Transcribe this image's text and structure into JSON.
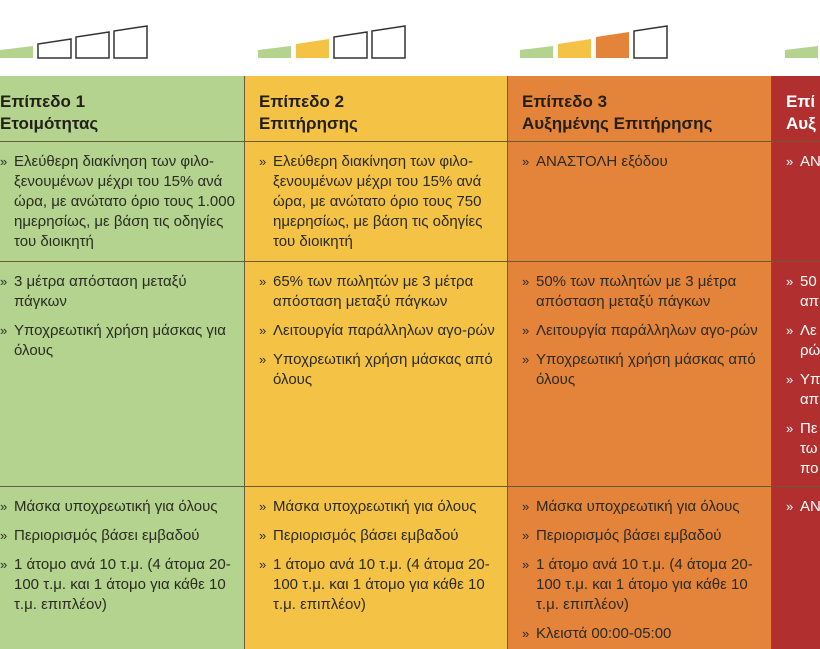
{
  "colors": {
    "level1": "#b3d38f",
    "level2": "#f4c345",
    "level3": "#e4843a",
    "level4": "#b12f2e"
  },
  "icons": [
    {
      "name": "level-indicator-1",
      "filled": 1
    },
    {
      "name": "level-indicator-2",
      "filled": 2
    },
    {
      "name": "level-indicator-3",
      "filled": 3
    },
    {
      "name": "level-indicator-4",
      "filled": 1
    }
  ],
  "columns": [
    {
      "title1": "Επίπεδο 1",
      "title2": "Ετοιμότητας",
      "row1": [
        "Ελεύθερη διακίνηση των φιλο-ξενουμένων μέχρι του 15% ανά ώρα, με ανώτατο όριο τους 1.000 ημερησίως, με βάση τις οδηγίες του διοικητή"
      ],
      "row2": [
        "3 μέτρα απόσταση μεταξύ πάγκων",
        "Υποχρεωτική χρήση μάσκας για όλους"
      ],
      "row3": [
        "Μάσκα υποχρεωτική για όλους",
        "Περιορισμός βάσει εμβαδού",
        "1 άτομο ανά 10 τ.μ. (4 άτομα 20-100 τ.μ. και 1 άτομο για κάθε 10 τ.μ. επιπλέον)"
      ]
    },
    {
      "title1": "Επίπεδο 2",
      "title2": "Επιτήρησης",
      "row1": [
        "Ελεύθερη διακίνηση των φιλο-ξενουμένων μέχρι του 15% ανά ώρα, με ανώτατο όριο τους 750 ημερησίως, με βάση τις οδηγίες του διοικητή"
      ],
      "row2": [
        "65% των πωλητών με 3 μέτρα απόσταση μεταξύ πάγκων",
        "Λειτουργία παράλληλων αγο-ρών",
        "Υποχρεωτική χρήση μάσκας από όλους"
      ],
      "row3": [
        "Μάσκα υποχρεωτική για όλους",
        "Περιορισμός βάσει εμβαδού",
        "1 άτομο ανά 10 τ.μ. (4 άτομα 20-100 τ.μ. και 1 άτομο για κάθε 10 τ.μ. επιπλέον)"
      ]
    },
    {
      "title1": "Επίπεδο 3",
      "title2": "Αυξημένης Επιτήρησης",
      "row1": [
        "ΑΝΑΣΤΟΛΗ εξόδου"
      ],
      "row2": [
        "50% των πωλητών με 3 μέτρα απόσταση μεταξύ πάγκων",
        "Λειτουργία παράλληλων αγο-ρών",
        "Υποχρεωτική χρήση μάσκας από όλους"
      ],
      "row3": [
        "Μάσκα υποχρεωτική για όλους",
        "Περιορισμός βάσει εμβαδού",
        "1 άτομο ανά 10 τ.μ. (4 άτομα 20-100 τ.μ. και 1 άτομο για κάθε 10 τ.μ. επιπλέον)",
        "Κλειστά 00:00-05:00"
      ]
    },
    {
      "title1": "Επί",
      "title2": "Αυξ",
      "row1": [
        "ΑΝ"
      ],
      "row2": [
        "50 απ",
        "Λε ρώ",
        "Υπ απ",
        "Πε τω πο"
      ],
      "row3": [
        "ΑΝ"
      ]
    }
  ]
}
